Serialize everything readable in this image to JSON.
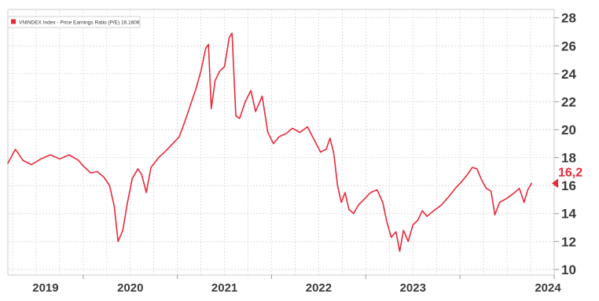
{
  "chart_data": {
    "type": "line",
    "legend": "VNINDEX Index - Price Earnings Ratio (P/E) 16.1608",
    "series": [
      {
        "name": "VNINDEX Index - Price Earnings Ratio (P/E)",
        "color": "#e8293a",
        "points": [
          [
            2018.2,
            17.6
          ],
          [
            2018.28,
            18.6
          ],
          [
            2018.36,
            17.8
          ],
          [
            2018.45,
            17.5
          ],
          [
            2018.55,
            17.9
          ],
          [
            2018.65,
            18.2
          ],
          [
            2018.75,
            17.9
          ],
          [
            2018.85,
            18.2
          ],
          [
            2018.95,
            17.8
          ],
          [
            2019.0,
            17.4
          ],
          [
            2019.08,
            16.9
          ],
          [
            2019.15,
            17.0
          ],
          [
            2019.22,
            16.6
          ],
          [
            2019.28,
            16.0
          ],
          [
            2019.33,
            14.5
          ],
          [
            2019.37,
            12.0
          ],
          [
            2019.42,
            12.8
          ],
          [
            2019.47,
            14.8
          ],
          [
            2019.52,
            16.5
          ],
          [
            2019.58,
            17.2
          ],
          [
            2019.62,
            16.8
          ],
          [
            2019.67,
            15.5
          ],
          [
            2019.72,
            17.3
          ],
          [
            2019.8,
            18.0
          ],
          [
            2019.88,
            18.5
          ],
          [
            2019.95,
            19.0
          ],
          [
            2020.02,
            19.5
          ],
          [
            2020.08,
            20.6
          ],
          [
            2020.14,
            21.8
          ],
          [
            2020.2,
            23.0
          ],
          [
            2020.25,
            24.2
          ],
          [
            2020.3,
            25.8
          ],
          [
            2020.33,
            26.1
          ],
          [
            2020.36,
            21.5
          ],
          [
            2020.4,
            23.5
          ],
          [
            2020.45,
            24.2
          ],
          [
            2020.5,
            24.5
          ],
          [
            2020.55,
            26.6
          ],
          [
            2020.58,
            26.9
          ],
          [
            2020.62,
            21.0
          ],
          [
            2020.66,
            20.8
          ],
          [
            2020.72,
            22.0
          ],
          [
            2020.78,
            22.8
          ],
          [
            2020.83,
            21.3
          ],
          [
            2020.9,
            22.4
          ],
          [
            2020.96,
            19.8
          ],
          [
            2021.02,
            19.0
          ],
          [
            2021.08,
            19.5
          ],
          [
            2021.15,
            19.7
          ],
          [
            2021.22,
            20.1
          ],
          [
            2021.3,
            19.8
          ],
          [
            2021.38,
            20.2
          ],
          [
            2021.45,
            19.3
          ],
          [
            2021.52,
            18.4
          ],
          [
            2021.58,
            18.6
          ],
          [
            2021.62,
            19.4
          ],
          [
            2021.66,
            18.3
          ],
          [
            2021.7,
            16.0
          ],
          [
            2021.74,
            14.8
          ],
          [
            2021.78,
            15.5
          ],
          [
            2021.82,
            14.3
          ],
          [
            2021.87,
            14.0
          ],
          [
            2021.92,
            14.6
          ],
          [
            2021.98,
            15.0
          ],
          [
            2022.05,
            15.5
          ],
          [
            2022.12,
            15.7
          ],
          [
            2022.18,
            14.8
          ],
          [
            2022.22,
            13.5
          ],
          [
            2022.27,
            12.3
          ],
          [
            2022.32,
            12.7
          ],
          [
            2022.36,
            11.3
          ],
          [
            2022.4,
            12.8
          ],
          [
            2022.45,
            12.0
          ],
          [
            2022.5,
            13.2
          ],
          [
            2022.55,
            13.5
          ],
          [
            2022.6,
            14.2
          ],
          [
            2022.65,
            13.8
          ],
          [
            2022.72,
            14.2
          ],
          [
            2022.8,
            14.6
          ],
          [
            2022.88,
            15.2
          ],
          [
            2022.95,
            15.8
          ],
          [
            2023.02,
            16.3
          ],
          [
            2023.08,
            16.8
          ],
          [
            2023.13,
            17.3
          ],
          [
            2023.18,
            17.2
          ],
          [
            2023.23,
            16.4
          ],
          [
            2023.28,
            15.8
          ],
          [
            2023.33,
            15.6
          ],
          [
            2023.37,
            13.9
          ],
          [
            2023.42,
            14.8
          ],
          [
            2023.5,
            15.1
          ],
          [
            2023.58,
            15.5
          ],
          [
            2023.63,
            15.8
          ],
          [
            2023.68,
            14.8
          ],
          [
            2023.72,
            15.7
          ],
          [
            2023.76,
            16.16
          ]
        ]
      }
    ],
    "x_ticks": [
      "2019",
      "2020",
      "2021",
      "2022",
      "2023",
      "2024"
    ],
    "x_tick_values": [
      2019.0,
      2020.0,
      2021.0,
      2022.0,
      2023.0,
      2024.0
    ],
    "y_ticks": [
      10,
      12,
      14,
      16,
      18,
      20,
      22,
      24,
      26,
      28
    ],
    "xlim": [
      2018.2,
      2024.0
    ],
    "ylim": [
      9.6,
      28.6
    ],
    "last_value": {
      "label": "16,2",
      "value": 16.16,
      "color": "#e8293a"
    },
    "grid": true,
    "legend_position": "top-left",
    "y_axis_position": "right",
    "xlabel": "",
    "ylabel": "",
    "title": ""
  }
}
